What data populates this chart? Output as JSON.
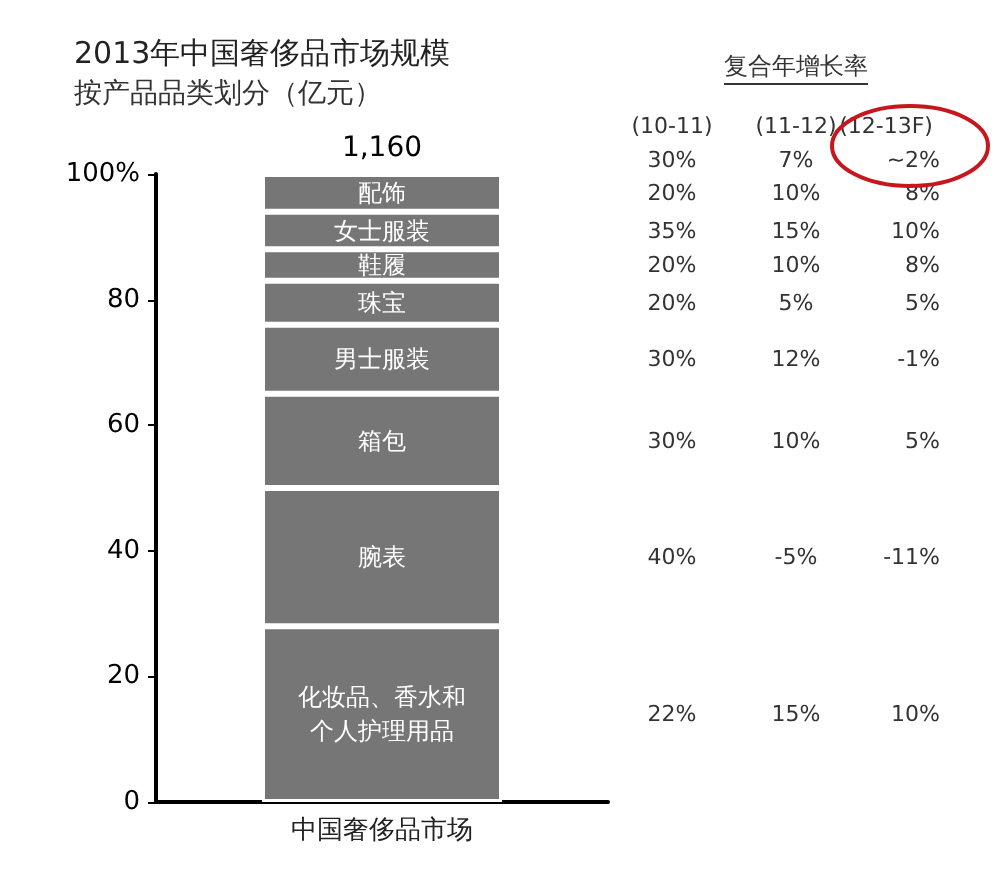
{
  "chart_data": {
    "type": "bar",
    "title": "2013年中国奢侈品市场规模",
    "subtitle": "按产品品类划分（亿元）",
    "categories": [
      "中国奢侈品市场"
    ],
    "stacked": true,
    "legend": false,
    "grid": false,
    "ylim": [
      0,
      100
    ],
    "yticks": [
      0,
      20,
      40,
      60,
      80,
      {
        "value": 100,
        "label": "100%"
      }
    ],
    "series": [
      {
        "name": "化妆品、香水和个人护理用品",
        "color": "#767676",
        "values": [
          28
        ]
      },
      {
        "name": "腕表",
        "color": "#767676",
        "values": [
          22
        ]
      },
      {
        "name": "箱包",
        "color": "#767676",
        "values": [
          15
        ]
      },
      {
        "name": "男士服装",
        "color": "#767676",
        "values": [
          11
        ]
      },
      {
        "name": "珠宝",
        "color": "#767676",
        "values": [
          7
        ]
      },
      {
        "name": "鞋履",
        "color": "#767676",
        "values": [
          5
        ]
      },
      {
        "name": "女士服装",
        "color": "#767676",
        "values": [
          6
        ]
      },
      {
        "name": "配饰",
        "color": "#767676",
        "values": [
          6
        ]
      }
    ],
    "annotations": [
      "1,160",
      "复合年增长率",
      "(10-11)",
      "(11-12)",
      "(12-13F)",
      "30%",
      "7%",
      "~2%",
      "20%",
      "10%",
      "8%",
      "35%",
      "15%",
      "10%",
      "20%",
      "10%",
      "8%",
      "20%",
      "5%",
      "5%",
      "30%",
      "12%",
      "-1%",
      "30%",
      "10%",
      "5%",
      "40%",
      "-5%",
      "-11%",
      "22%",
      "15%",
      "10%"
    ]
  }
}
